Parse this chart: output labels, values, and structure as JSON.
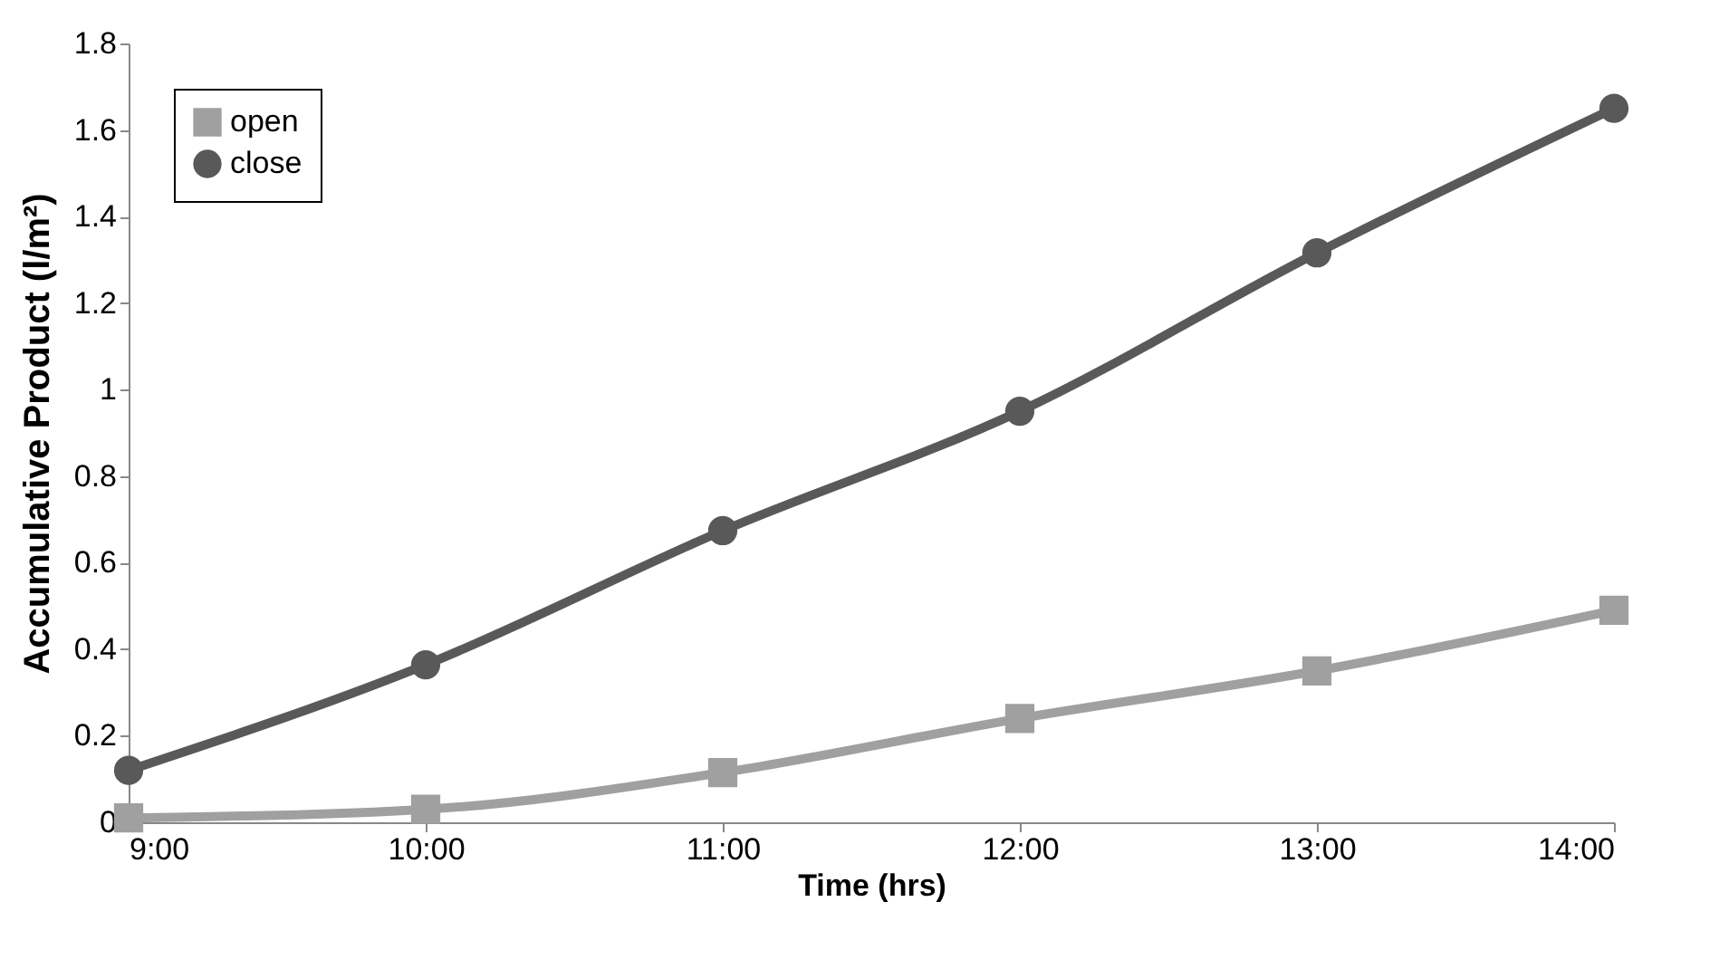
{
  "chart_data": {
    "type": "line",
    "xlabel": "Time (hrs)",
    "ylabel": "Accumulative Product (l/m²)",
    "categories": [
      "9:00",
      "10:00",
      "11:00",
      "12:00",
      "13:00",
      "14:00"
    ],
    "series": [
      {
        "name": "open",
        "color": "#a0a0a0",
        "marker": "square",
        "values": [
          0.01,
          0.03,
          0.115,
          0.24,
          0.35,
          0.49
        ]
      },
      {
        "name": "close",
        "color": "#595959",
        "marker": "circle",
        "values": [
          0.12,
          0.364,
          0.674,
          0.95,
          1.316,
          1.65
        ]
      }
    ],
    "ylim": [
      0,
      1.8
    ],
    "yticks": [
      0,
      0.2,
      0.4,
      0.6,
      0.8,
      1,
      1.2,
      1.4,
      1.6,
      1.8
    ],
    "grid": false,
    "legend": "top left",
    "line_style": "solid"
  }
}
